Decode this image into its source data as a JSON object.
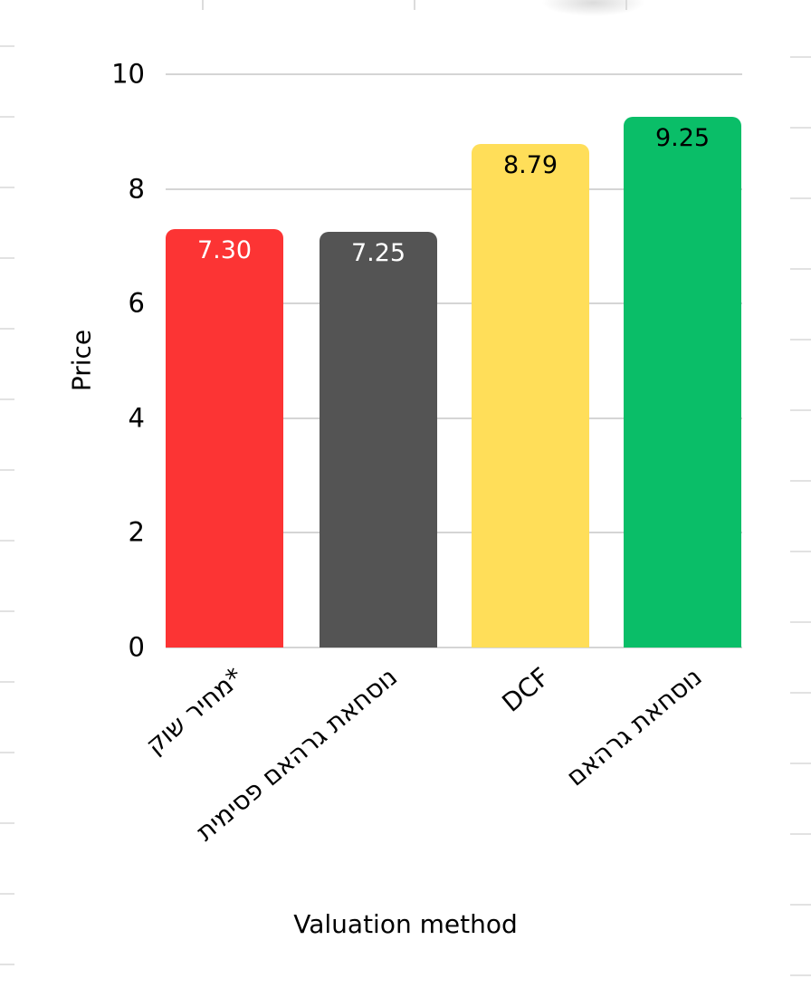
{
  "chart_data": {
    "type": "bar",
    "title": "",
    "xlabel": "Valuation method",
    "ylabel": "Price",
    "categories": [
      "*מחיר שוק",
      "נוסחאת גרהאם פסימית",
      "DCF",
      "נוסחאת גרהאם"
    ],
    "category_names": [
      "market-price",
      "graham-formula-pessimistic",
      "dcf",
      "graham-formula"
    ],
    "values": [
      7.3,
      7.25,
      8.79,
      9.25
    ],
    "value_labels": [
      "7.30",
      "7.25",
      "8.79",
      "9.25"
    ],
    "bar_colors": [
      "#fc3434",
      "#545454",
      "#ffde59",
      "#0abe68"
    ],
    "value_label_colors": [
      "#ffffff",
      "#ffffff",
      "#000000",
      "#000000"
    ],
    "ylim": [
      0,
      10
    ],
    "yticks": [
      0,
      2,
      4,
      6,
      8,
      10
    ],
    "grid": true,
    "legend": "none",
    "category_label_rotation_deg": -40
  },
  "decor": {
    "gridline_color": "#d5d5d5",
    "sheet_gridline_color": "#e2e2e2",
    "background_color": "#ffffff"
  }
}
